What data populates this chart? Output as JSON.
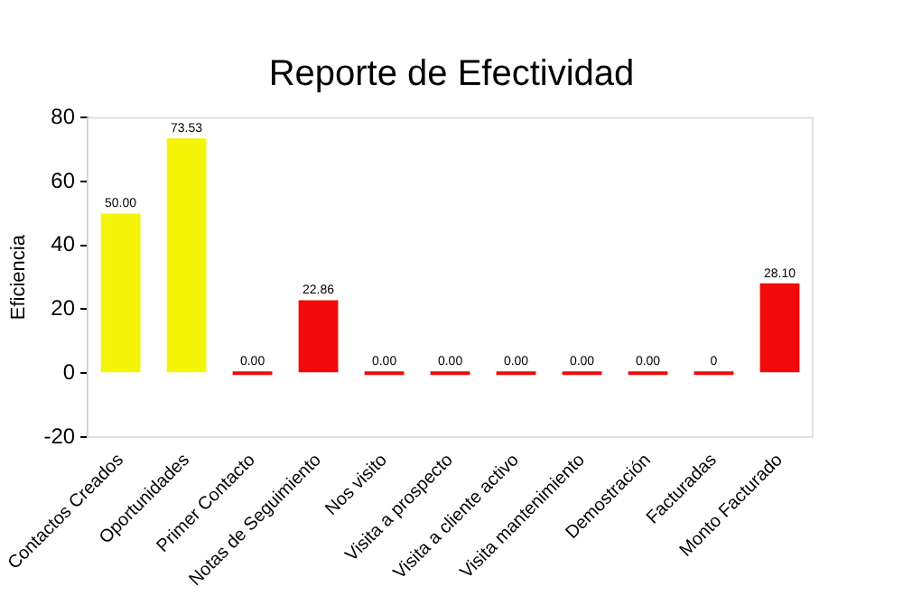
{
  "chart_data": {
    "type": "bar",
    "title": "Reporte de Efectividad",
    "ylabel": "Eficiencia",
    "categories": [
      "Contactos Creados",
      "Oportunidades",
      "Primer Contacto",
      "Notas de Seguimiento",
      "Nos visito",
      "Visita a prospecto",
      "Visita a cliente activo",
      "Visita mantenimiento",
      "Demostración",
      "Facturadas",
      "Monto Facturado"
    ],
    "values": [
      50,
      73.53,
      0,
      22.86,
      0,
      0,
      0,
      0,
      0,
      0,
      28.1
    ],
    "colors": [
      "#f5f50a",
      "#f5f50a",
      "#f00a0a",
      "#f00a0a",
      "#f00a0a",
      "#f00a0a",
      "#f00a0a",
      "#f00a0a",
      "#f00a0a",
      "#f00a0a",
      "#f00a0a"
    ],
    "value_labels": [
      "50.00",
      "73.53",
      "0.00",
      "22.86",
      "0.00",
      "0.00",
      "0.00",
      "0.00",
      "0.00",
      "0",
      "28.10"
    ],
    "ylim": [
      -20,
      80
    ],
    "yticks": [
      -20,
      0,
      20,
      40,
      60,
      80
    ],
    "grid": false,
    "legend": false
  }
}
